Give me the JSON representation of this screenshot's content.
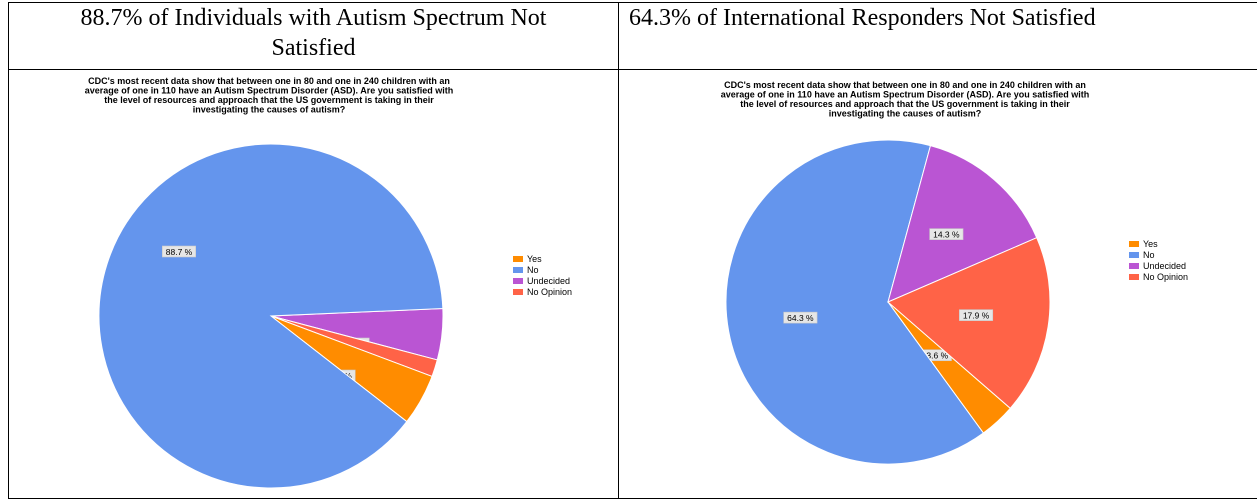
{
  "headings": [
    {
      "text": "88.7% of Individuals with Autism Spectrum Not Satisfied"
    },
    {
      "text": "64.3% of International Responders Not Satisfied"
    }
  ],
  "chart_data": [
    {
      "type": "pie",
      "title_lines": [
        "CDC's most recent data show that between one in 80 and one in 240 children with an",
        "average of one in 110 have an Autism Spectrum Disorder (ASD).  Are you satisfied with",
        "the level of resources and approach that the US government is taking in their",
        "investigating the causes of autism?"
      ],
      "categories": [
        "Yes",
        "No",
        "Undecided",
        "No Opinion"
      ],
      "values": [
        4.8,
        88.7,
        4.8,
        1.6
      ],
      "labels": [
        "4.8 %",
        "88.7 %",
        "4.8 %",
        "1.6 %"
      ],
      "colors": [
        "#ff8c00",
        "#6495ed",
        "#ba55d3",
        "#ff6347"
      ],
      "legend_position": "right"
    },
    {
      "type": "pie",
      "title_lines": [
        "CDC's most recent data show that between one in 80 and one in 240 children with an",
        "average of one in 110 have an Autism Spectrum Disorder (ASD).  Are you satisfied with",
        "the level of resources and approach that the US government is taking in their",
        "investigating the causes of autism?"
      ],
      "categories": [
        "Yes",
        "No",
        "Undecided",
        "No Opinion"
      ],
      "values": [
        3.6,
        64.3,
        14.3,
        17.9
      ],
      "labels": [
        "3.6 %",
        "64.3 %",
        "14.3 %",
        "17.9 %"
      ],
      "colors": [
        "#ff8c00",
        "#6495ed",
        "#ba55d3",
        "#ff6347"
      ],
      "legend_position": "right"
    }
  ]
}
